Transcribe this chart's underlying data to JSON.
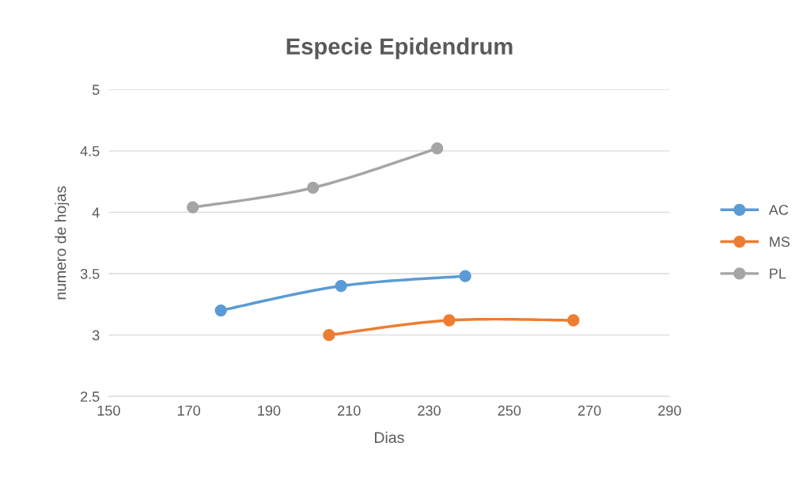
{
  "chart_data": {
    "type": "line",
    "title": "Especie Epidendrum",
    "xlabel": "Dias",
    "ylabel": "numero de hojas",
    "xlim": [
      150,
      290
    ],
    "xticks": [
      150,
      170,
      190,
      210,
      230,
      250,
      270,
      290
    ],
    "ylim": [
      2.5,
      5
    ],
    "yticks": [
      2.5,
      3,
      3.5,
      4,
      4.5,
      5
    ],
    "grid": "y",
    "legend": "right",
    "marker": "circle",
    "line_style": "solid",
    "series": [
      {
        "name": "AC",
        "color": "#5b9bd5",
        "x": [
          178,
          208,
          239
        ],
        "values": [
          3.2,
          3.4,
          3.48
        ]
      },
      {
        "name": "MS",
        "color": "#ed7d31",
        "x": [
          205,
          235,
          266
        ],
        "values": [
          3.0,
          3.12,
          3.12
        ]
      },
      {
        "name": "PL",
        "color": "#a5a5a5",
        "x": [
          171,
          201,
          232
        ],
        "values": [
          4.04,
          4.2,
          4.52
        ]
      }
    ]
  }
}
